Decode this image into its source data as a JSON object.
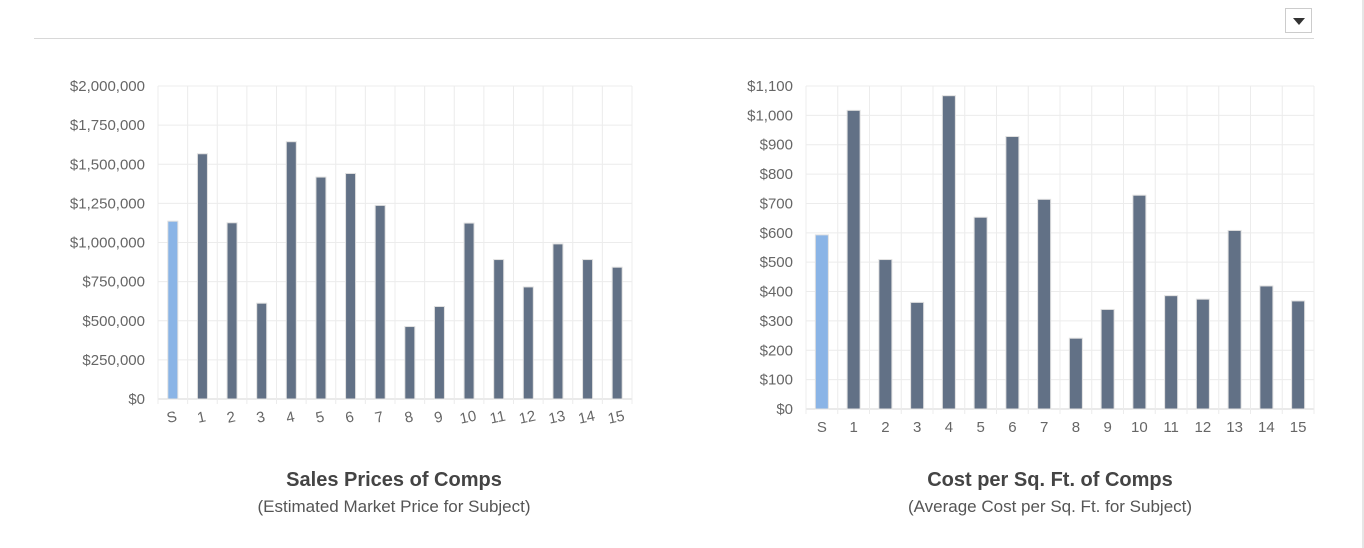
{
  "header": {
    "menu_icon": "chevron-down-icon"
  },
  "colors": {
    "subject": "#8ab4e6",
    "comp": "#627186",
    "grid": "#ececec",
    "axis_text": "#666666"
  },
  "chart_data": [
    {
      "type": "bar",
      "title": "Sales Prices of Comps",
      "subtitle": "(Estimated Market Price for Subject)",
      "categories": [
        "S",
        "1",
        "2",
        "3",
        "4",
        "5",
        "6",
        "7",
        "8",
        "9",
        "10",
        "11",
        "12",
        "13",
        "14",
        "15"
      ],
      "values": [
        1136000,
        1567000,
        1126000,
        612000,
        1644000,
        1418000,
        1441000,
        1237000,
        463000,
        591000,
        1124000,
        891000,
        716000,
        991000,
        891000,
        842000
      ],
      "ylim": [
        0,
        2000000
      ],
      "yticks": [
        "$0",
        "$250,000",
        "$500,000",
        "$750,000",
        "$1,000,000",
        "$1,250,000",
        "$1,500,000",
        "$1,750,000",
        "$2,000,000"
      ],
      "grid": true,
      "legend": "none"
    },
    {
      "type": "bar",
      "title": "Cost per Sq. Ft. of Comps",
      "subtitle": "(Average Cost per Sq. Ft. for Subject)",
      "categories": [
        "S",
        "1",
        "2",
        "3",
        "4",
        "5",
        "6",
        "7",
        "8",
        "9",
        "10",
        "11",
        "12",
        "13",
        "14",
        "15"
      ],
      "values": [
        593,
        1017,
        509,
        363,
        1067,
        653,
        928,
        714,
        241,
        339,
        728,
        386,
        374,
        608,
        419,
        368
      ],
      "ylim": [
        0,
        1100
      ],
      "yticks": [
        "$0",
        "$100",
        "$200",
        "$300",
        "$400",
        "$500",
        "$600",
        "$700",
        "$800",
        "$900",
        "$1,000",
        "$1,100"
      ],
      "grid": true,
      "legend": "none"
    }
  ]
}
